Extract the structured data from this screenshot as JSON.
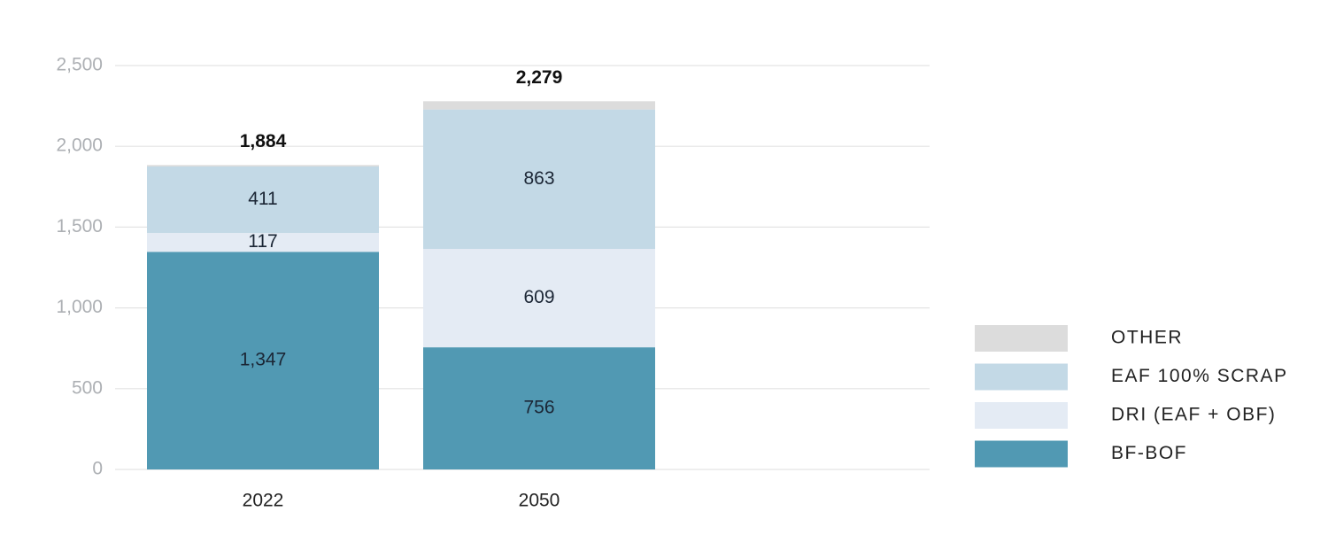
{
  "chart_data": {
    "type": "stacked_bar",
    "categories": [
      "2022",
      "2050"
    ],
    "series": [
      {
        "name": "BF-BOF",
        "color": "#5199b3",
        "values": [
          1347,
          756
        ],
        "value_labels": [
          "1,347",
          "756"
        ]
      },
      {
        "name": "DRI (EAF + OBF)",
        "color": "#e4ebf4",
        "values": [
          117,
          609
        ]
      },
      {
        "name": "EAF 100% SCRAP",
        "color": "#c3d9e6",
        "values": [
          411,
          863
        ]
      },
      {
        "name": "OTHER",
        "color": "#dcdcdc",
        "values": [
          9,
          51
        ],
        "value_labels": [
          null,
          null
        ]
      }
    ],
    "totals": {
      "values": [
        1884,
        2279
      ],
      "value_labels": [
        "1,884",
        "2,279"
      ]
    },
    "ylim": [
      0,
      2500
    ],
    "yticks": [
      0,
      500,
      {
        "value": 1000,
        "label": "1,000"
      },
      {
        "value": 1500,
        "label": "1,500"
      },
      {
        "value": 2000,
        "label": "2,000"
      },
      {
        "value": 2500,
        "label": "2,500"
      }
    ],
    "grid": true,
    "legend": "right"
  }
}
